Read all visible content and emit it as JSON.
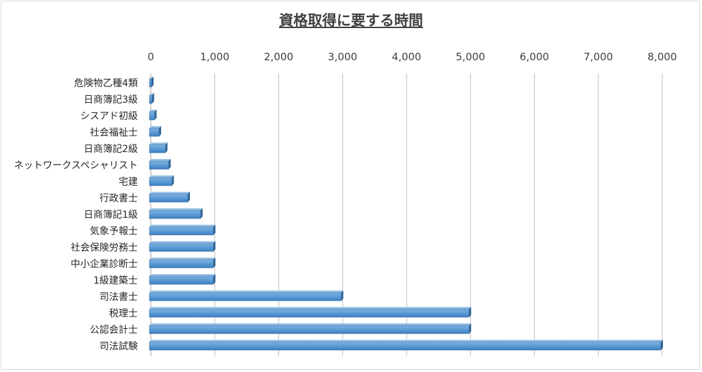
{
  "chart_data": {
    "type": "bar",
    "orientation": "horizontal",
    "title": "資格取得に要する時間",
    "xlabel": "",
    "ylabel": "",
    "xlim": [
      0,
      8000
    ],
    "x_ticks": [
      "0",
      "1,000",
      "2,000",
      "3,000",
      "4,000",
      "5,000",
      "6,000",
      "7,000",
      "8,000"
    ],
    "x_axis_position": "top",
    "grid": true,
    "legend": "none",
    "bar_color": "#5b9bd5",
    "categories": [
      "危険物乙種4類",
      "日商簿記3級",
      "シスアド初級",
      "社会福祉士",
      "日商簿記2級",
      "ネットワークスペシャリスト",
      "宅建",
      "行政書士",
      "日商簿記1級",
      "気象予報士",
      "社会保険労務士",
      "中小企業診断士",
      "1級建築士",
      "司法書士",
      "税理士",
      "公認会計士",
      "司法試験"
    ],
    "values": [
      30,
      40,
      80,
      150,
      250,
      300,
      350,
      600,
      800,
      1000,
      1000,
      1000,
      1000,
      3000,
      5000,
      5000,
      8000
    ]
  }
}
